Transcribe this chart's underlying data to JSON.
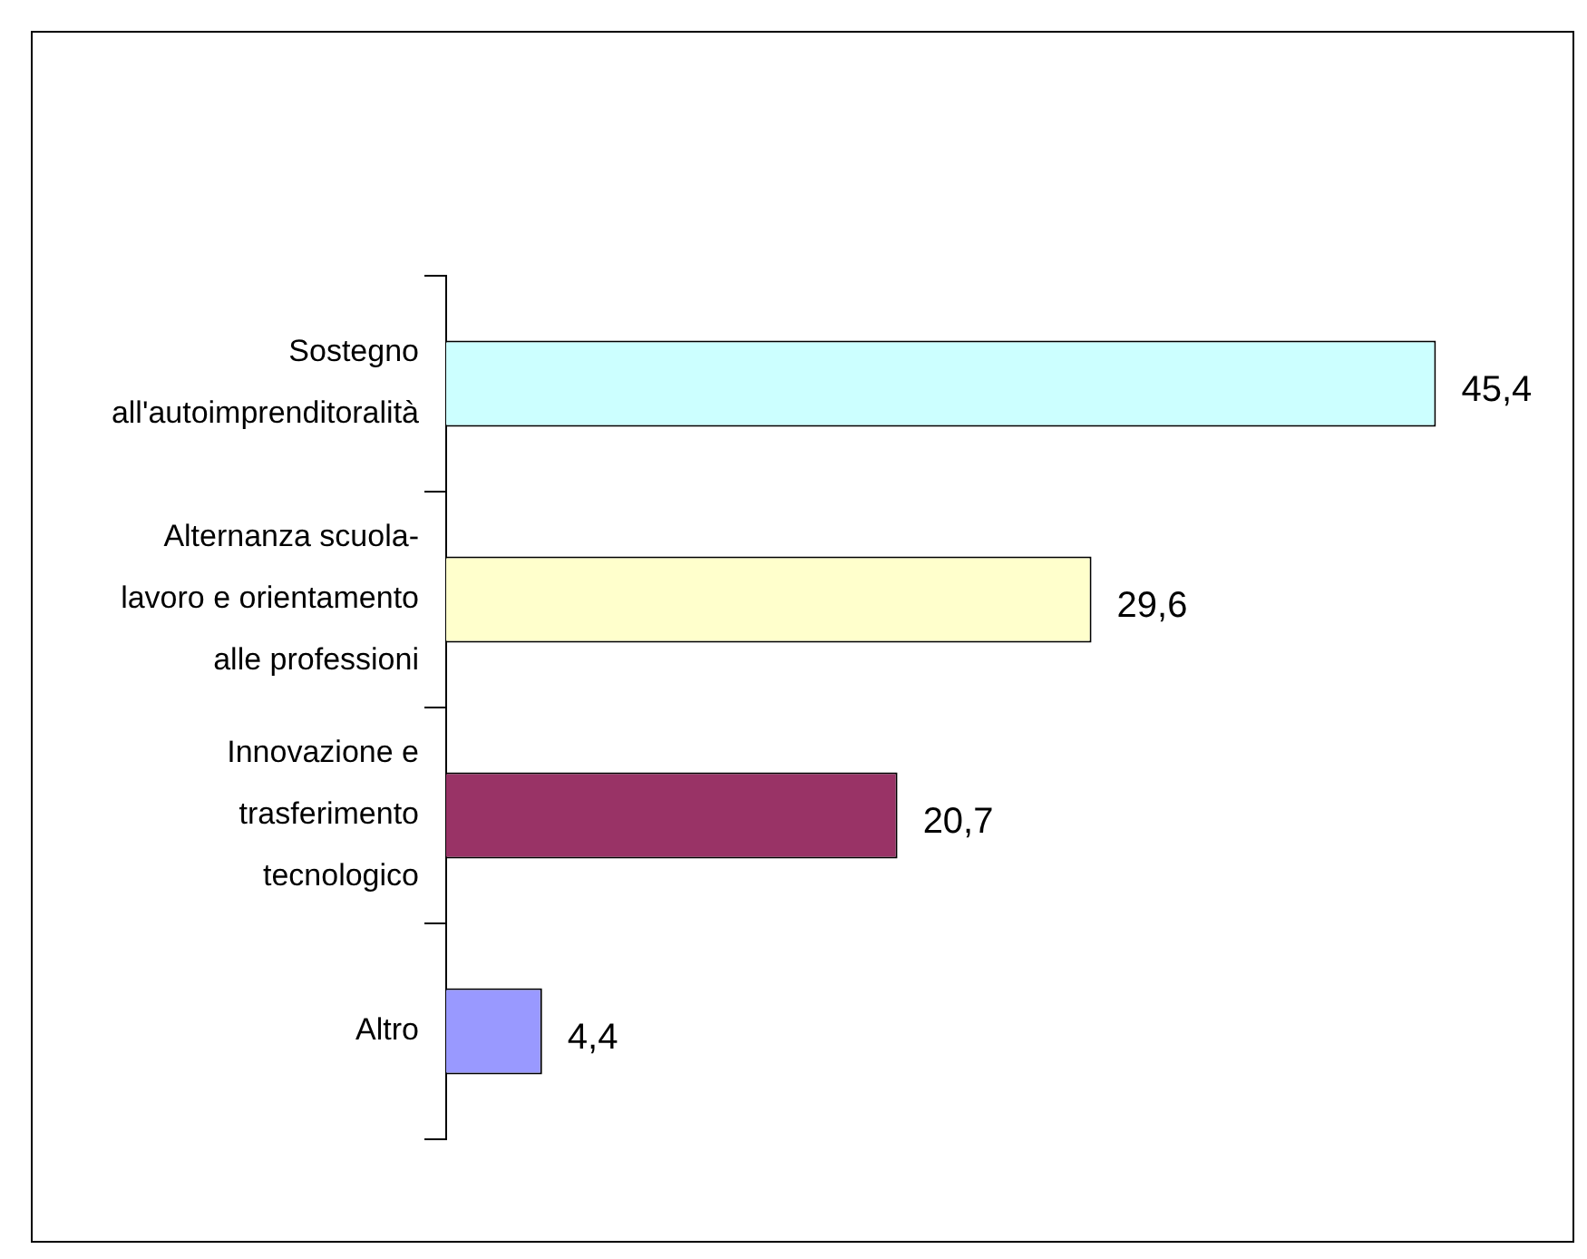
{
  "chart_data": {
    "type": "bar",
    "orientation": "horizontal",
    "categories": [
      "Sostegno all'autoimprenditoralità",
      "Alternanza scuola-lavoro e orientamento alle professioni",
      "Innovazione e trasferimento tecnologico",
      "Altro"
    ],
    "values": [
      45.4,
      29.6,
      20.7,
      4.4
    ],
    "colors": [
      "#ccffff",
      "#ffffcc",
      "#993366",
      "#9999ff"
    ],
    "value_labels": [
      "45,4",
      "29,6",
      "20,7",
      "4,4"
    ],
    "tick_labels": "y"
  }
}
